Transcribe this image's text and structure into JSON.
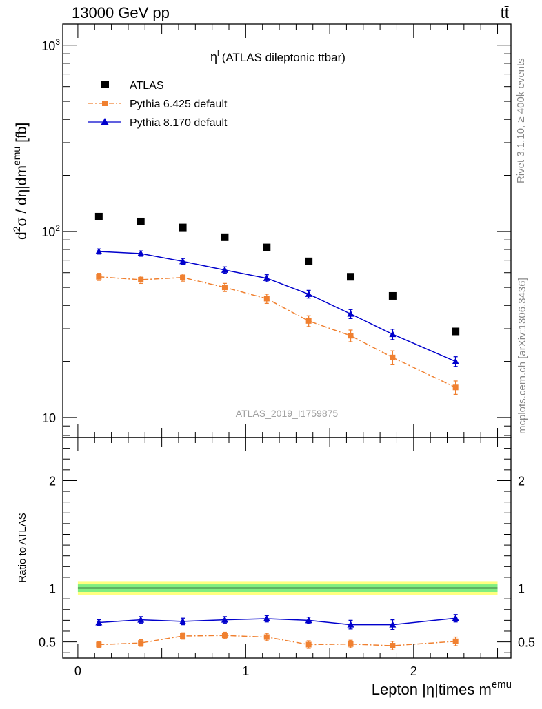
{
  "header": {
    "left": "13000 GeV pp",
    "right": "tt̄"
  },
  "side_labels": {
    "rivet": "Rivet 3.1.10, ≥ 400k events",
    "mcplots": "mcplots.cern.ch [arXiv:1306.3436]"
  },
  "watermark": "ATLAS_2019_I1759875",
  "colors": {
    "atlas": "#000000",
    "pythia6": "#f08030",
    "pythia8": "#0000cc",
    "band_outer": "#ffff80",
    "band_inner": "#80ee80"
  },
  "chart_data": [
    {
      "type": "scatter",
      "title": "η^l (ATLAS dileptonic ttbar)",
      "title_main": "η",
      "title_sup": "l",
      "title_rest": "(ATLAS dileptonic ttbar)",
      "ylabel": "d²σ / dη|dm^emu [fb]",
      "ylabel_main": "d",
      "ylabel_sup2": "2",
      "ylabel_mid": "σ / dη|dm",
      "ylabel_supemu": "emu",
      "ylabel_end": "[fb]",
      "yscale": "log",
      "ylim": [
        7.8,
        1300
      ],
      "xlim": [
        -0.09,
        2.58
      ],
      "ytick_labels": [
        {
          "v": 1000,
          "base": "10",
          "exp": "3"
        },
        {
          "v": 100,
          "base": "10",
          "exp": "2"
        },
        {
          "v": 10,
          "base": "10",
          "exp": ""
        }
      ],
      "legend_position": "top-left",
      "x": [
        0.125,
        0.375,
        0.625,
        0.875,
        1.125,
        1.375,
        1.625,
        1.875,
        2.25
      ],
      "series": [
        {
          "name": "ATLAS",
          "marker": "square",
          "color": "#000000",
          "values": [
            120,
            113,
            105,
            93,
            82,
            69,
            57,
            45,
            29
          ],
          "errors": [
            0,
            0,
            0,
            0,
            0,
            0,
            0,
            0,
            0
          ]
        },
        {
          "name": "Pythia 6.425 default",
          "marker": "square",
          "line": "dashdot",
          "color": "#f08030",
          "values": [
            57,
            55,
            56.5,
            50,
            43.5,
            33,
            27.5,
            21,
            14.5
          ],
          "errors": [
            2.5,
            2.5,
            2.5,
            2.5,
            2.5,
            2.2,
            2,
            1.8,
            1.2
          ]
        },
        {
          "name": "Pythia 8.170 default",
          "marker": "triangle",
          "line": "solid",
          "color": "#0000cc",
          "values": [
            78,
            76,
            69,
            62,
            56,
            46,
            36,
            28,
            20
          ],
          "errors": [
            2.5,
            2.5,
            2.5,
            2.5,
            2.5,
            2.2,
            2,
            1.8,
            1.2
          ]
        }
      ]
    },
    {
      "type": "scatter",
      "xlabel": "Lepton |η|times m^emu",
      "xlabel_main": "Lepton |η|times m",
      "xlabel_sup": "emu",
      "ylabel": "Ratio to ATLAS",
      "ylim": [
        0.35,
        2.4
      ],
      "xlim": [
        -0.09,
        2.58
      ],
      "xticks": [
        0,
        1,
        2
      ],
      "xtick_labels": [
        "0",
        "1",
        "2"
      ],
      "yticks": [
        0.5,
        1,
        2
      ],
      "ytick_labels": [
        "0.5",
        "1",
        "2"
      ],
      "band": {
        "x": [
          0,
          2.5
        ],
        "outer": [
          0.935,
          1.065
        ],
        "inner": [
          0.965,
          1.035
        ]
      },
      "x": [
        0.125,
        0.375,
        0.625,
        0.875,
        1.125,
        1.375,
        1.625,
        1.875,
        2.25
      ],
      "series": [
        {
          "name": "Pythia 6.425 default",
          "marker": "square",
          "line": "dashdot",
          "color": "#f08030",
          "values": [
            0.475,
            0.49,
            0.555,
            0.56,
            0.545,
            0.475,
            0.48,
            0.465,
            0.505
          ],
          "errors": [
            0.03,
            0.03,
            0.03,
            0.03,
            0.035,
            0.035,
            0.035,
            0.04,
            0.04
          ]
        },
        {
          "name": "Pythia 8.170 default",
          "marker": "triangle",
          "line": "solid",
          "color": "#0000cc",
          "values": [
            0.68,
            0.705,
            0.69,
            0.705,
            0.715,
            0.7,
            0.66,
            0.66,
            0.72
          ],
          "errors": [
            0.025,
            0.03,
            0.03,
            0.03,
            0.03,
            0.03,
            0.04,
            0.045,
            0.035
          ]
        }
      ]
    }
  ]
}
